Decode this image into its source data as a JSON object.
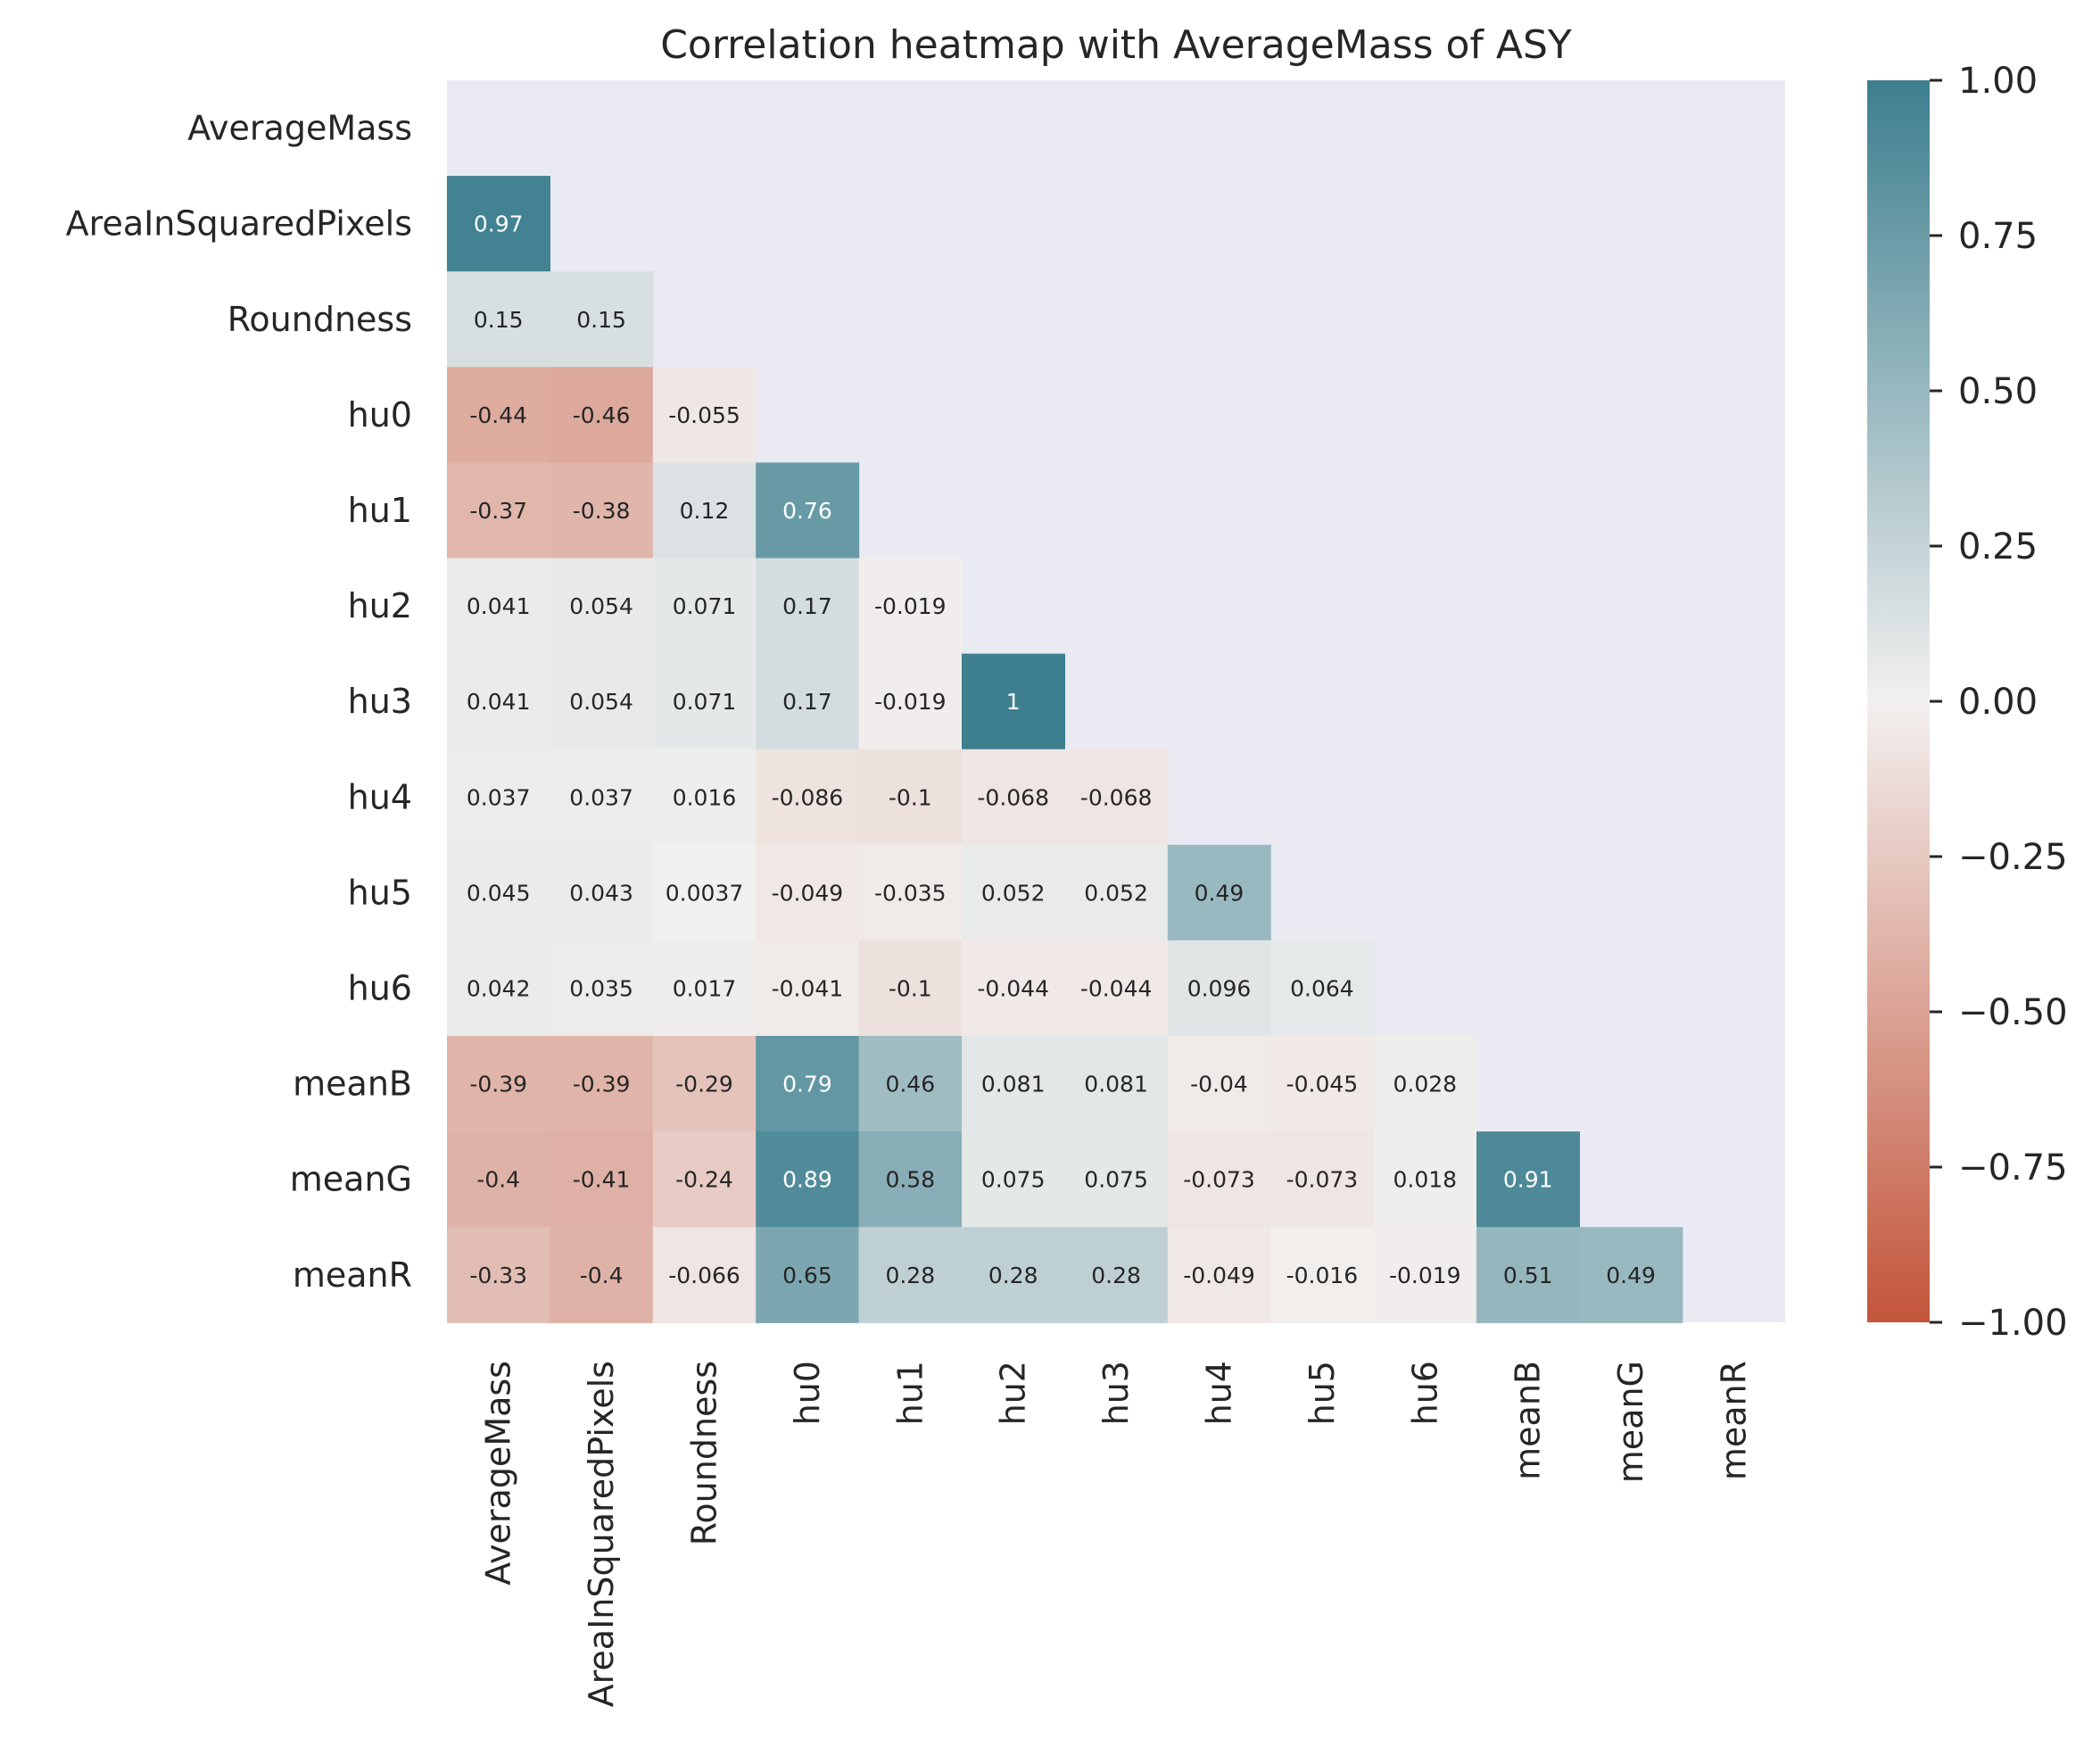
{
  "chart_data": {
    "type": "heatmap",
    "title": "Correlation heatmap with AverageMass of ASY",
    "rows": [
      "AverageMass",
      "AreaInSquaredPixels",
      "Roundness",
      "hu0",
      "hu1",
      "hu2",
      "hu3",
      "hu4",
      "hu5",
      "hu6",
      "meanB",
      "meanG",
      "meanR"
    ],
    "columns": [
      "AverageMass",
      "AreaInSquaredPixels",
      "Roundness",
      "hu0",
      "hu1",
      "hu2",
      "hu3",
      "hu4",
      "hu5",
      "hu6",
      "meanB",
      "meanG",
      "meanR"
    ],
    "mask": "upper-triangle-including-diagonal",
    "values": [
      [],
      [
        "0.97"
      ],
      [
        "0.15",
        "0.15"
      ],
      [
        "-0.44",
        "-0.46",
        "-0.055"
      ],
      [
        "-0.37",
        "-0.38",
        "0.12",
        "0.76"
      ],
      [
        "0.041",
        "0.054",
        "0.071",
        "0.17",
        "-0.019"
      ],
      [
        "0.041",
        "0.054",
        "0.071",
        "0.17",
        "-0.019",
        "1"
      ],
      [
        "0.037",
        "0.037",
        "0.016",
        "-0.086",
        "-0.1",
        "-0.068",
        "-0.068"
      ],
      [
        "0.045",
        "0.043",
        "0.0037",
        "-0.049",
        "-0.035",
        "0.052",
        "0.052",
        "0.49"
      ],
      [
        "0.042",
        "0.035",
        "0.017",
        "-0.041",
        "-0.1",
        "-0.044",
        "-0.044",
        "0.096",
        "0.064"
      ],
      [
        "-0.39",
        "-0.39",
        "-0.29",
        "0.79",
        "0.46",
        "0.081",
        "0.081",
        "-0.04",
        "-0.045",
        "0.028"
      ],
      [
        "-0.4",
        "-0.41",
        "-0.24",
        "0.89",
        "0.58",
        "0.075",
        "0.075",
        "-0.073",
        "-0.073",
        "0.018",
        "0.91"
      ],
      [
        "-0.33",
        "-0.4",
        "-0.066",
        "0.65",
        "0.28",
        "0.28",
        "0.28",
        "-0.049",
        "-0.016",
        "-0.019",
        "0.51",
        "0.49"
      ]
    ],
    "colorbar": {
      "range": [
        -1.0,
        1.0
      ],
      "ticks": [
        "1.00",
        "0.75",
        "0.50",
        "0.25",
        "0.00",
        "−0.25",
        "−0.50",
        "−0.75",
        "−1.00"
      ],
      "tick_values": [
        1.0,
        0.75,
        0.5,
        0.25,
        0.0,
        -0.25,
        -0.5,
        -0.75,
        -1.0
      ],
      "colors": {
        "low": "#c3553a",
        "mid": "#f2f0ef",
        "high": "#3d7f8f"
      }
    },
    "background_color": "#eaeaf2"
  }
}
